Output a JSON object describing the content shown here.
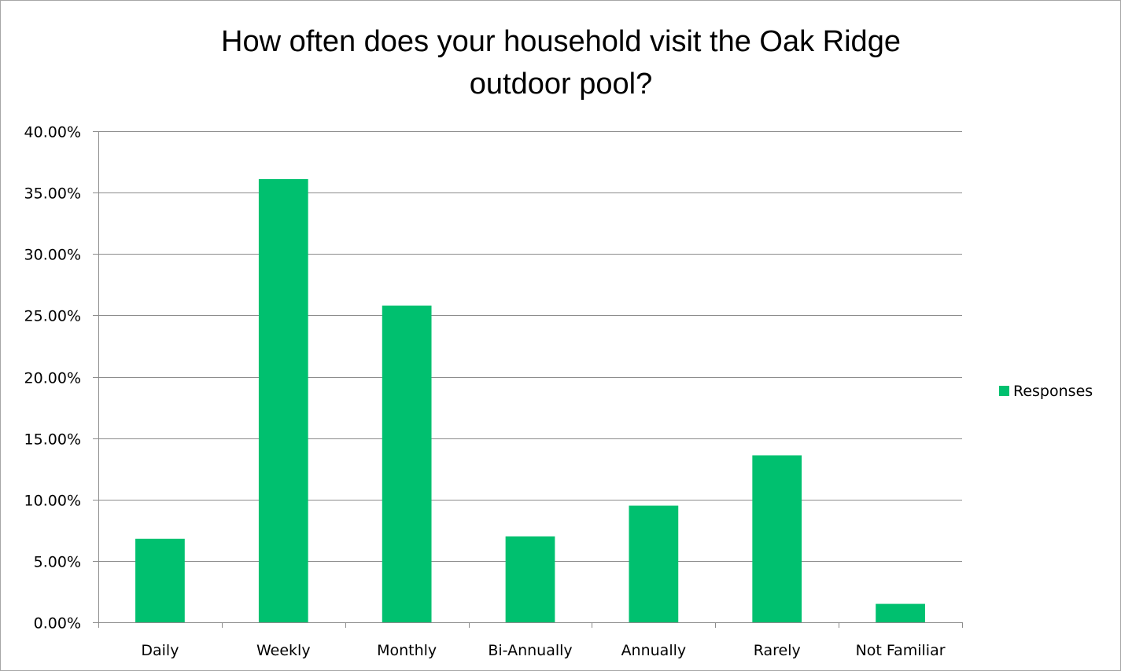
{
  "chart_data": {
    "type": "bar",
    "title": "How often does your household visit the Oak Ridge outdoor pool?",
    "title_lines": [
      "How often does your household visit the Oak Ridge",
      "outdoor pool?"
    ],
    "categories": [
      "Daily",
      "Weekly",
      "Monthly",
      "Bi-Annually",
      "Annually",
      "Rarely",
      "Not Familiar"
    ],
    "series": [
      {
        "name": "Responses",
        "values": [
          6.8,
          36.1,
          25.8,
          7.0,
          9.5,
          13.6,
          1.5
        ],
        "color": "#00c06f"
      }
    ],
    "ylim": [
      0,
      40
    ],
    "yticks": [
      "0.00%",
      "5.00%",
      "10.00%",
      "15.00%",
      "20.00%",
      "25.00%",
      "30.00%",
      "35.00%",
      "40.00%"
    ],
    "grid": true,
    "legend_position": "right",
    "xlabel": "",
    "ylabel": ""
  }
}
